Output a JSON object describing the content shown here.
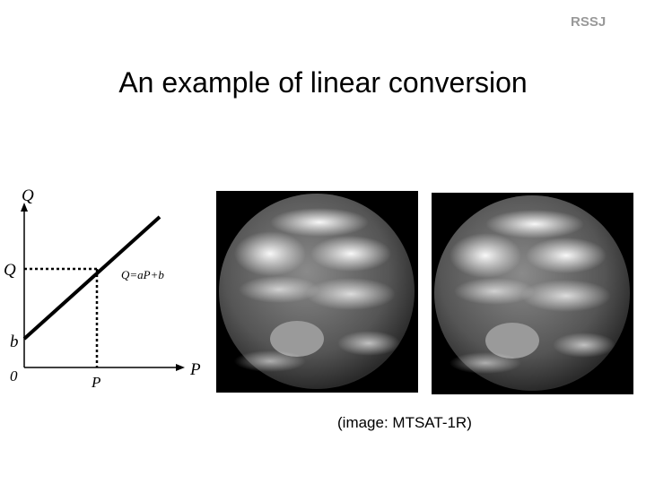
{
  "header": {
    "logo": "RSSJ"
  },
  "title": "An example of linear conversion",
  "diagram": {
    "y_axis_label": "Q",
    "x_axis_label": "P",
    "origin_label": "0",
    "q_marker": "Q",
    "p_marker": "P",
    "b_marker": "b",
    "equation": "Q=aP+b"
  },
  "caption": "(image: MTSAT-1R)"
}
